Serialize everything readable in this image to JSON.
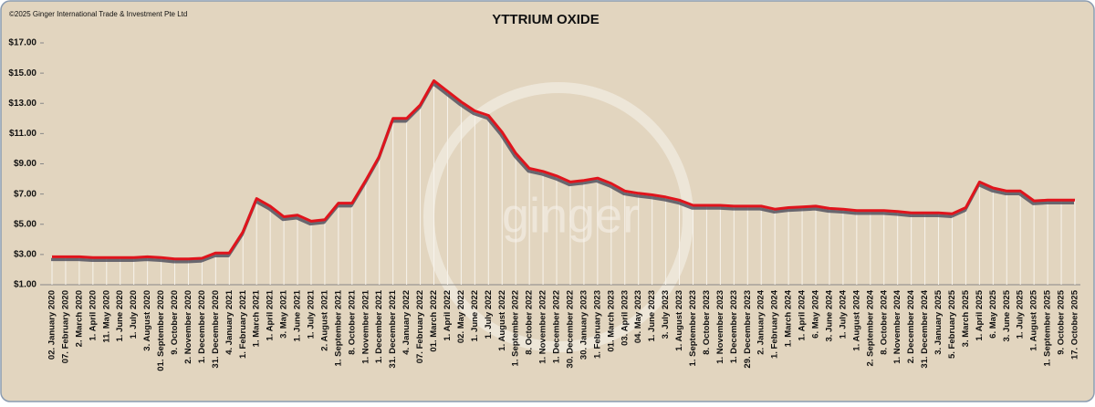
{
  "chart_data": {
    "type": "line",
    "title": "YTTRIUM OXIDE",
    "copyright": "©2025 Ginger International Trade & Investment Pte Ltd",
    "watermark": "ginger",
    "categories": [
      "02. January 2020",
      "07. February 2020",
      "2. March 2020",
      "1. April 2020",
      "11. May 2020",
      "1. June 2020",
      "1. July 2020",
      "3. August 2020",
      "01. September 2020",
      "9. October 2020",
      "2. November 2020",
      "1. December 2020",
      "31. December 2020",
      "4. January 2021",
      "1. February 2021",
      "1. March 2021",
      "1. April 2021",
      "3. May 2021",
      "1. June 2021",
      "1. July 2021",
      "2. August 2021",
      "1. September 2021",
      "8. October 2021",
      "1. November 2021",
      "1. December 2021",
      "31. December 2021",
      "4. January 2022",
      "07. February 2022",
      "01. March 2022",
      "1. April 2022",
      "02. May 2022",
      "1. June 2022",
      "1. July 2022",
      "1. August 2022",
      "1. September 2022",
      "8. October 2022",
      "1. November 2022",
      "1. December 2022",
      "30. December 2022",
      "30. January 2023",
      "1. February 2023",
      "01. March 2023",
      "03. April 2023",
      "04. May 2023",
      "1. June 2023",
      "3. July 2023",
      "1. August 2023",
      "1. September 2023",
      "8. October 2023",
      "1. November 2023",
      "1. December 2023",
      "29. December 2023",
      "2. January 2024",
      "1. February 2024",
      "1. March 2024",
      "1. April 2024",
      "6. May 2024",
      "3. June 2024",
      "1. July 2024",
      "1. August 2024",
      "2. September 2024",
      "8. October 2024",
      "1. November 2024",
      "2. December 2024",
      "31. December 2024",
      "3. January 2025",
      "5. February 2025",
      "3. March 2025",
      "1. April 2025",
      "6. May 2025",
      "3. June 2025",
      "1. July 2025",
      "1. August 2025",
      "1. September 2025",
      "9. October 2025",
      "17. October 2025"
    ],
    "series": [
      {
        "name": "Yttrium Oxide",
        "color": "#e0141c",
        "values": [
          2.85,
          2.85,
          2.85,
          2.8,
          2.8,
          2.8,
          2.8,
          2.85,
          2.8,
          2.7,
          2.7,
          2.75,
          3.1,
          3.1,
          4.5,
          6.7,
          6.2,
          5.5,
          5.6,
          5.2,
          5.3,
          6.4,
          6.4,
          7.9,
          9.5,
          12.0,
          12.0,
          12.9,
          14.5,
          13.8,
          13.1,
          12.5,
          12.2,
          11.1,
          9.7,
          8.7,
          8.5,
          8.2,
          7.8,
          7.9,
          8.05,
          7.7,
          7.2,
          7.05,
          6.95,
          6.8,
          6.6,
          6.25,
          6.25,
          6.25,
          6.2,
          6.2,
          6.2,
          6.0,
          6.1,
          6.15,
          6.2,
          6.05,
          6.0,
          5.9,
          5.9,
          5.9,
          5.85,
          5.75,
          5.75,
          5.75,
          5.7,
          6.1,
          7.8,
          7.4,
          7.2,
          7.2,
          6.55,
          6.6,
          6.6,
          6.6
        ]
      }
    ],
    "ylim": [
      1,
      17
    ],
    "yticks": [
      {
        "value": 1,
        "label": "$1.00"
      },
      {
        "value": 3,
        "label": "$3.00"
      },
      {
        "value": 5,
        "label": "$5.00"
      },
      {
        "value": 7,
        "label": "$7.00"
      },
      {
        "value": 9,
        "label": "$9.00"
      },
      {
        "value": 11,
        "label": "$11.00"
      },
      {
        "value": 13,
        "label": "$13.00"
      },
      {
        "value": 15,
        "label": "$15.00"
      },
      {
        "value": 17,
        "label": "$17.00"
      }
    ],
    "drop_lines": true
  }
}
